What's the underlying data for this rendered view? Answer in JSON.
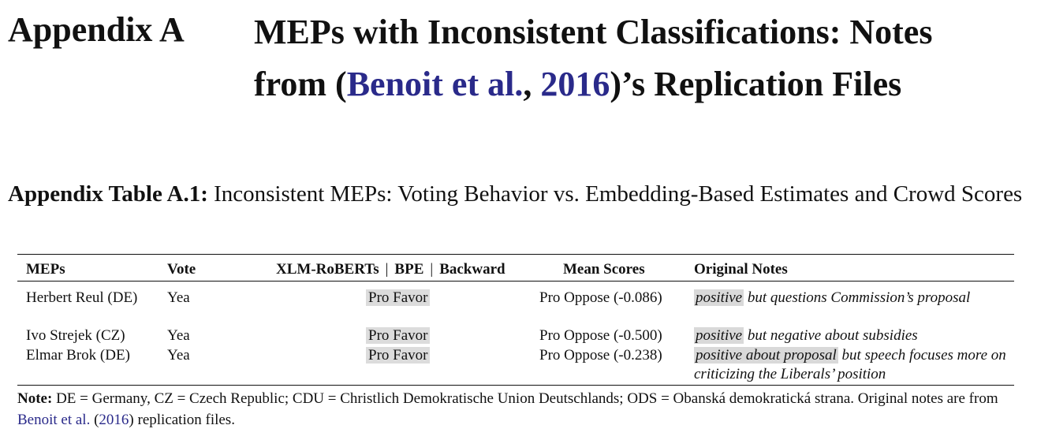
{
  "appendix": {
    "label": "Appendix A",
    "title_line1": "MEPs with Inconsistent Classifications: Notes",
    "title_prefix": "from (",
    "cite_author": "Benoit et al.",
    "cite_comma": ", ",
    "cite_year": "2016",
    "title_suffix": ")’s Replication Files"
  },
  "caption": {
    "label": "Appendix Table A.1:",
    "text": " Inconsistent MEPs: Voting Behavior vs. Embedding-Based Estimates and Crowd Scores"
  },
  "table": {
    "headers": {
      "meps": "MEPs",
      "vote": "Vote",
      "xlm": "XLM-RoBERTs",
      "sep": "|",
      "bpe": "BPE",
      "backward": "Backward",
      "mean": "Mean Scores",
      "notes": "Original Notes"
    },
    "rows": [
      {
        "mep": "Herbert Reul (DE)",
        "vote": "Yea",
        "estimate": "Pro Favor",
        "mean": "Pro Oppose (-0.086)",
        "note_highlight": "positive",
        "note_rest": " but questions Commission’s proposal"
      },
      {
        "mep": "Ivo Strejek (CZ)",
        "vote": "Yea",
        "estimate": "Pro Favor",
        "mean": "Pro Oppose (-0.500)",
        "note_highlight": "positive",
        "note_rest": " but negative about subsidies"
      },
      {
        "mep": "Elmar Brok (DE)",
        "vote": "Yea",
        "estimate": "Pro Favor",
        "mean": "Pro Oppose (-0.238)",
        "note_highlight": "positive about proposal",
        "note_rest": " but speech focuses more on criticizing the Liberals’ position"
      }
    ]
  },
  "note": {
    "label": "Note:",
    "text": " DE = Germany, CZ = Czech Republic; CDU = Christlich Demokratische Union Deutschlands; ODS = Obanská demokratická strana. Original notes are from ",
    "cite_author": "Benoit et al.",
    "cite_open": " (",
    "cite_year": "2016",
    "cite_close": ") replication files."
  },
  "colors": {
    "link": "#2a2a8a",
    "highlight": "#d9d9d9"
  }
}
